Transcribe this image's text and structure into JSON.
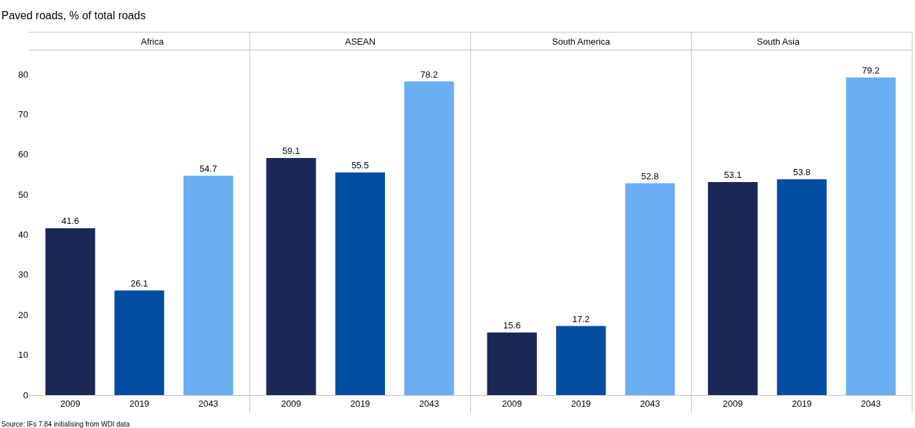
{
  "chart_data": [
    {
      "type": "bar",
      "title": "Paved roads, % of total roads",
      "subtitle": "Africa",
      "categories": [
        "2009",
        "2019",
        "2043"
      ],
      "values": [
        41.6,
        26.1,
        54.7
      ],
      "colors": [
        "#1b2857",
        "#034ea2",
        "#6aaef3"
      ],
      "ylim": [
        0,
        86
      ],
      "yticks": [
        0,
        10,
        20,
        30,
        40,
        50,
        60,
        70,
        80
      ],
      "data_labels": true,
      "grid": false
    },
    {
      "type": "bar",
      "subtitle": "ASEAN",
      "categories": [
        "2009",
        "2019",
        "2043"
      ],
      "values": [
        59.1,
        55.5,
        78.2
      ],
      "colors": [
        "#1b2857",
        "#034ea2",
        "#6aaef3"
      ],
      "ylim": [
        0,
        86
      ],
      "data_labels": true,
      "grid": false,
      "tick_labels": "x"
    },
    {
      "type": "bar",
      "subtitle": "South America",
      "categories": [
        "2009",
        "2019",
        "2043"
      ],
      "values": [
        15.6,
        17.2,
        52.8
      ],
      "colors": [
        "#1b2857",
        "#034ea2",
        "#6aaef3"
      ],
      "ylim": [
        0,
        86
      ],
      "data_labels": true,
      "grid": false,
      "tick_labels": "x"
    },
    {
      "type": "bar",
      "subtitle": "South Asia",
      "categories": [
        "2009",
        "2019",
        "2043"
      ],
      "values": [
        53.1,
        53.8,
        79.2
      ],
      "colors": [
        "#1b2857",
        "#034ea2",
        "#6aaef3"
      ],
      "ylim": [
        0,
        86
      ],
      "data_labels": true,
      "grid": false,
      "tick_labels": "x",
      "annotations": [
        "Source: IFs 7.84 initialising from WDI data"
      ]
    }
  ]
}
